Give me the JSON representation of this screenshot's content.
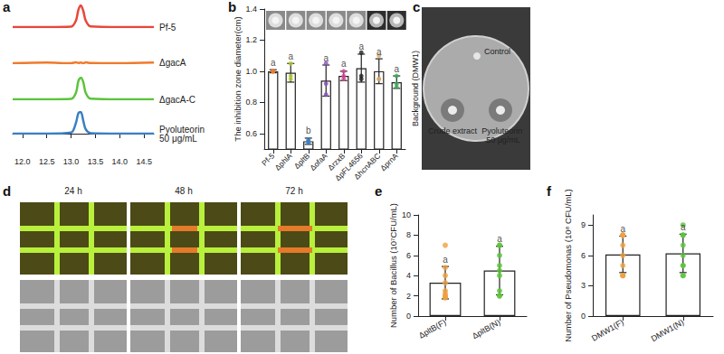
{
  "chart_data": [
    {
      "panel": "a",
      "type": "line",
      "x": [
        11.8,
        12.5,
        13.0,
        13.1,
        13.15,
        13.2,
        13.25,
        13.3,
        13.4,
        14.0,
        14.7
      ],
      "series": [
        {
          "name": "Pf-5",
          "color": "#e8473b",
          "values": [
            0,
            0,
            0.02,
            0.3,
            0.8,
            1.0,
            0.75,
            0.3,
            0.03,
            0,
            0
          ]
        },
        {
          "name": "ΔgacA",
          "color": "#f07a2a",
          "values": [
            0,
            0.03,
            0,
            0.04,
            0.01,
            0.03,
            0,
            0.04,
            0.01,
            0,
            0.03
          ]
        },
        {
          "name": "ΔgacA-C",
          "color": "#5cc43c",
          "values": [
            0,
            0,
            0.02,
            0.3,
            0.85,
            1.0,
            0.8,
            0.3,
            0.03,
            0,
            0
          ]
        },
        {
          "name": "Pyoluteorin 50 μg/mL",
          "color": "#3a7fc4",
          "values": [
            0,
            0,
            0.05,
            0.5,
            0.95,
            1.0,
            0.6,
            0.2,
            0.02,
            0,
            0
          ]
        }
      ],
      "xlim": [
        11.8,
        14.7
      ],
      "xticks": [
        {
          "value": 12,
          "label": "12.0"
        },
        12.5,
        {
          "value": 13,
          "label": "13.0"
        },
        13.5,
        {
          "value": 14,
          "label": "14.0"
        },
        14.5
      ],
      "ylim": [
        0,
        1
      ],
      "grid": false,
      "tick_labels": "x"
    },
    {
      "panel": "b",
      "type": "bar",
      "categories": [
        "Pf-5",
        "ΔphlA",
        "ΔpltB",
        "ΔofaA",
        "ΔrzxB",
        "ΔpFL4656",
        "ΔhcnABC",
        "ΔprnA"
      ],
      "values": [
        1.0,
        0.99,
        0.55,
        0.94,
        0.97,
        1.02,
        1.0,
        0.93
      ],
      "errors": [
        0.01,
        0.06,
        0.02,
        0.1,
        0.03,
        0.09,
        0.08,
        0.04
      ],
      "points": [
        [
          1.0,
          1.0,
          1.0
        ],
        [
          1.05,
          0.95,
          0.97
        ],
        [
          0.56,
          0.55,
          0.54
        ],
        [
          1.05,
          0.85,
          0.92
        ],
        [
          1.0,
          0.95,
          0.97
        ],
        [
          1.12,
          0.97,
          0.95
        ],
        [
          1.1,
          0.95,
          0.95
        ],
        [
          0.97,
          0.9,
          0.92
        ]
      ],
      "colors": [
        "#f07a2a",
        "#b5c93a",
        "#3a7fc4",
        "#8a4fc0",
        "#d9489a",
        "#222222",
        "#d6a86a",
        "#3fae5a"
      ],
      "annotations": [
        "a",
        "a",
        "b",
        "a",
        "a",
        "a",
        "a",
        "a"
      ],
      "color": "#ffffff",
      "ylabel": "The inhibition zone diameter(cm)",
      "ylim": [
        0.5,
        1.4
      ],
      "yticks": [
        0.6,
        0.8,
        {
          "value": 1,
          "label": "1.0"
        },
        1.2,
        1.4
      ],
      "grid": false
    },
    {
      "panel": "e",
      "type": "bar",
      "categories": [
        "ΔpltB(F)",
        "ΔpltB(N)"
      ],
      "values": [
        3.3,
        4.5
      ],
      "errors": [
        1.6,
        2.4
      ],
      "points": [
        [
          7.0,
          4.8,
          4.0,
          3.3,
          2.5,
          2.2,
          2.0,
          1.8,
          1.9
        ],
        [
          7.0,
          7.0,
          6.0,
          5.0,
          4.5,
          4.0,
          2.5,
          2.0,
          2.0
        ]
      ],
      "colors": [
        "#f0a040",
        "#5cc43c"
      ],
      "annotations": [
        "a",
        "a"
      ],
      "color": "#ffffff",
      "ylabel": "Number of Bacillus (10⁷CFU/mL)",
      "ylim": [
        0,
        10
      ],
      "yticks": [
        0,
        2,
        4,
        6,
        8,
        10
      ],
      "grid": false
    },
    {
      "panel": "f",
      "type": "bar",
      "categories": [
        "DMW1(F)",
        "DMW1(N)"
      ],
      "values": [
        6.1,
        6.2
      ],
      "errors": [
        1.8,
        1.9
      ],
      "points": [
        [
          8,
          8,
          8,
          7,
          6,
          5,
          4,
          4,
          4
        ],
        [
          9,
          8,
          8,
          7,
          6,
          5,
          5,
          4,
          4
        ]
      ],
      "colors": [
        "#f0a040",
        "#5cc43c"
      ],
      "annotations": [
        "a",
        "a"
      ],
      "color": "#ffffff",
      "ylabel": "Number of Pseudomonas (10⁸ CFU/mL)",
      "ylim": [
        0,
        10
      ],
      "yticks": [
        0,
        3,
        6,
        9
      ],
      "grid": false
    }
  ],
  "photos": [
    {
      "panel": "c",
      "background": "Background (DMW1)",
      "control": "Control",
      "crude": "Crude extract",
      "standard": "Pyoluteorin 50 μg/mL"
    },
    {
      "panel": "d",
      "times": [
        "24 h",
        "48 h",
        "72 h"
      ]
    }
  ]
}
